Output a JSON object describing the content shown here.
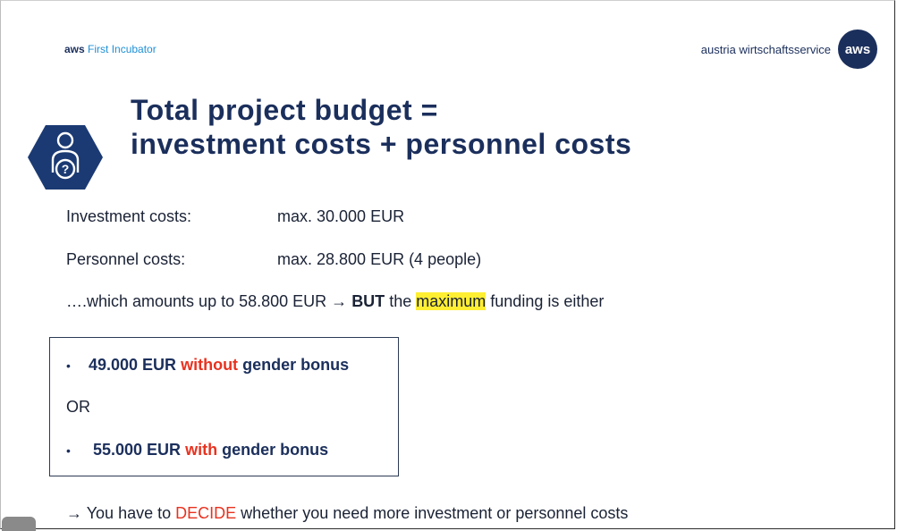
{
  "header": {
    "left_brand_bold": "aws",
    "left_brand_rest": "First Incubator",
    "right_brand_text": "austria wirtschaftsservice",
    "logo_text": "aws"
  },
  "title": {
    "line1": "Total project budget =",
    "line2": "investment costs + personnel costs"
  },
  "icon": {
    "name": "person-question-icon",
    "fill": "#1b3a73"
  },
  "costs": [
    {
      "label": "Investment costs:",
      "value": "max. 30.000 EUR"
    },
    {
      "label": "Personnel costs:",
      "value": "max. 28.800 EUR (4 people)"
    }
  ],
  "summary": {
    "prefix": "….which amounts up to 58.800 EUR",
    "arrow": "→",
    "but": "BUT",
    "mid": "the",
    "highlight": "maximum",
    "suffix": "funding is either"
  },
  "box": {
    "option1": {
      "bullet": "•",
      "amount": "49.000 EUR",
      "keyword": "without",
      "rest": "gender bonus"
    },
    "or_text": "OR",
    "option2": {
      "bullet": "•",
      "amount": "55.000 EUR",
      "keyword": "with",
      "rest": "gender bonus"
    }
  },
  "footer": {
    "arrow": "→",
    "prefix": "You have to",
    "keyword": "DECIDE",
    "suffix": "whether you need more investment or personnel costs"
  },
  "colors": {
    "navy": "#1b2f5c",
    "accent_red": "#e8321f",
    "highlight": "#ffef33",
    "brand_blue": "#1f8fd6"
  }
}
